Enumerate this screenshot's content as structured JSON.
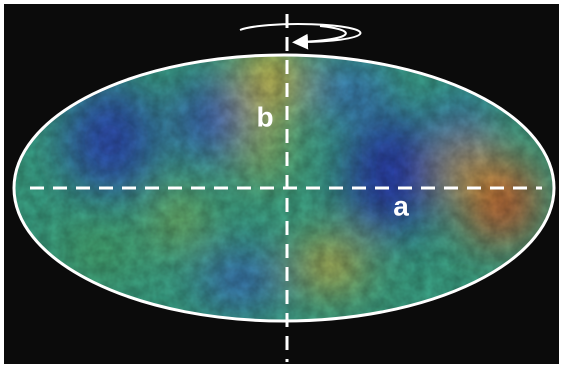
{
  "axes": [
    {
      "label": "b"
    },
    {
      "label": "a"
    }
  ]
}
